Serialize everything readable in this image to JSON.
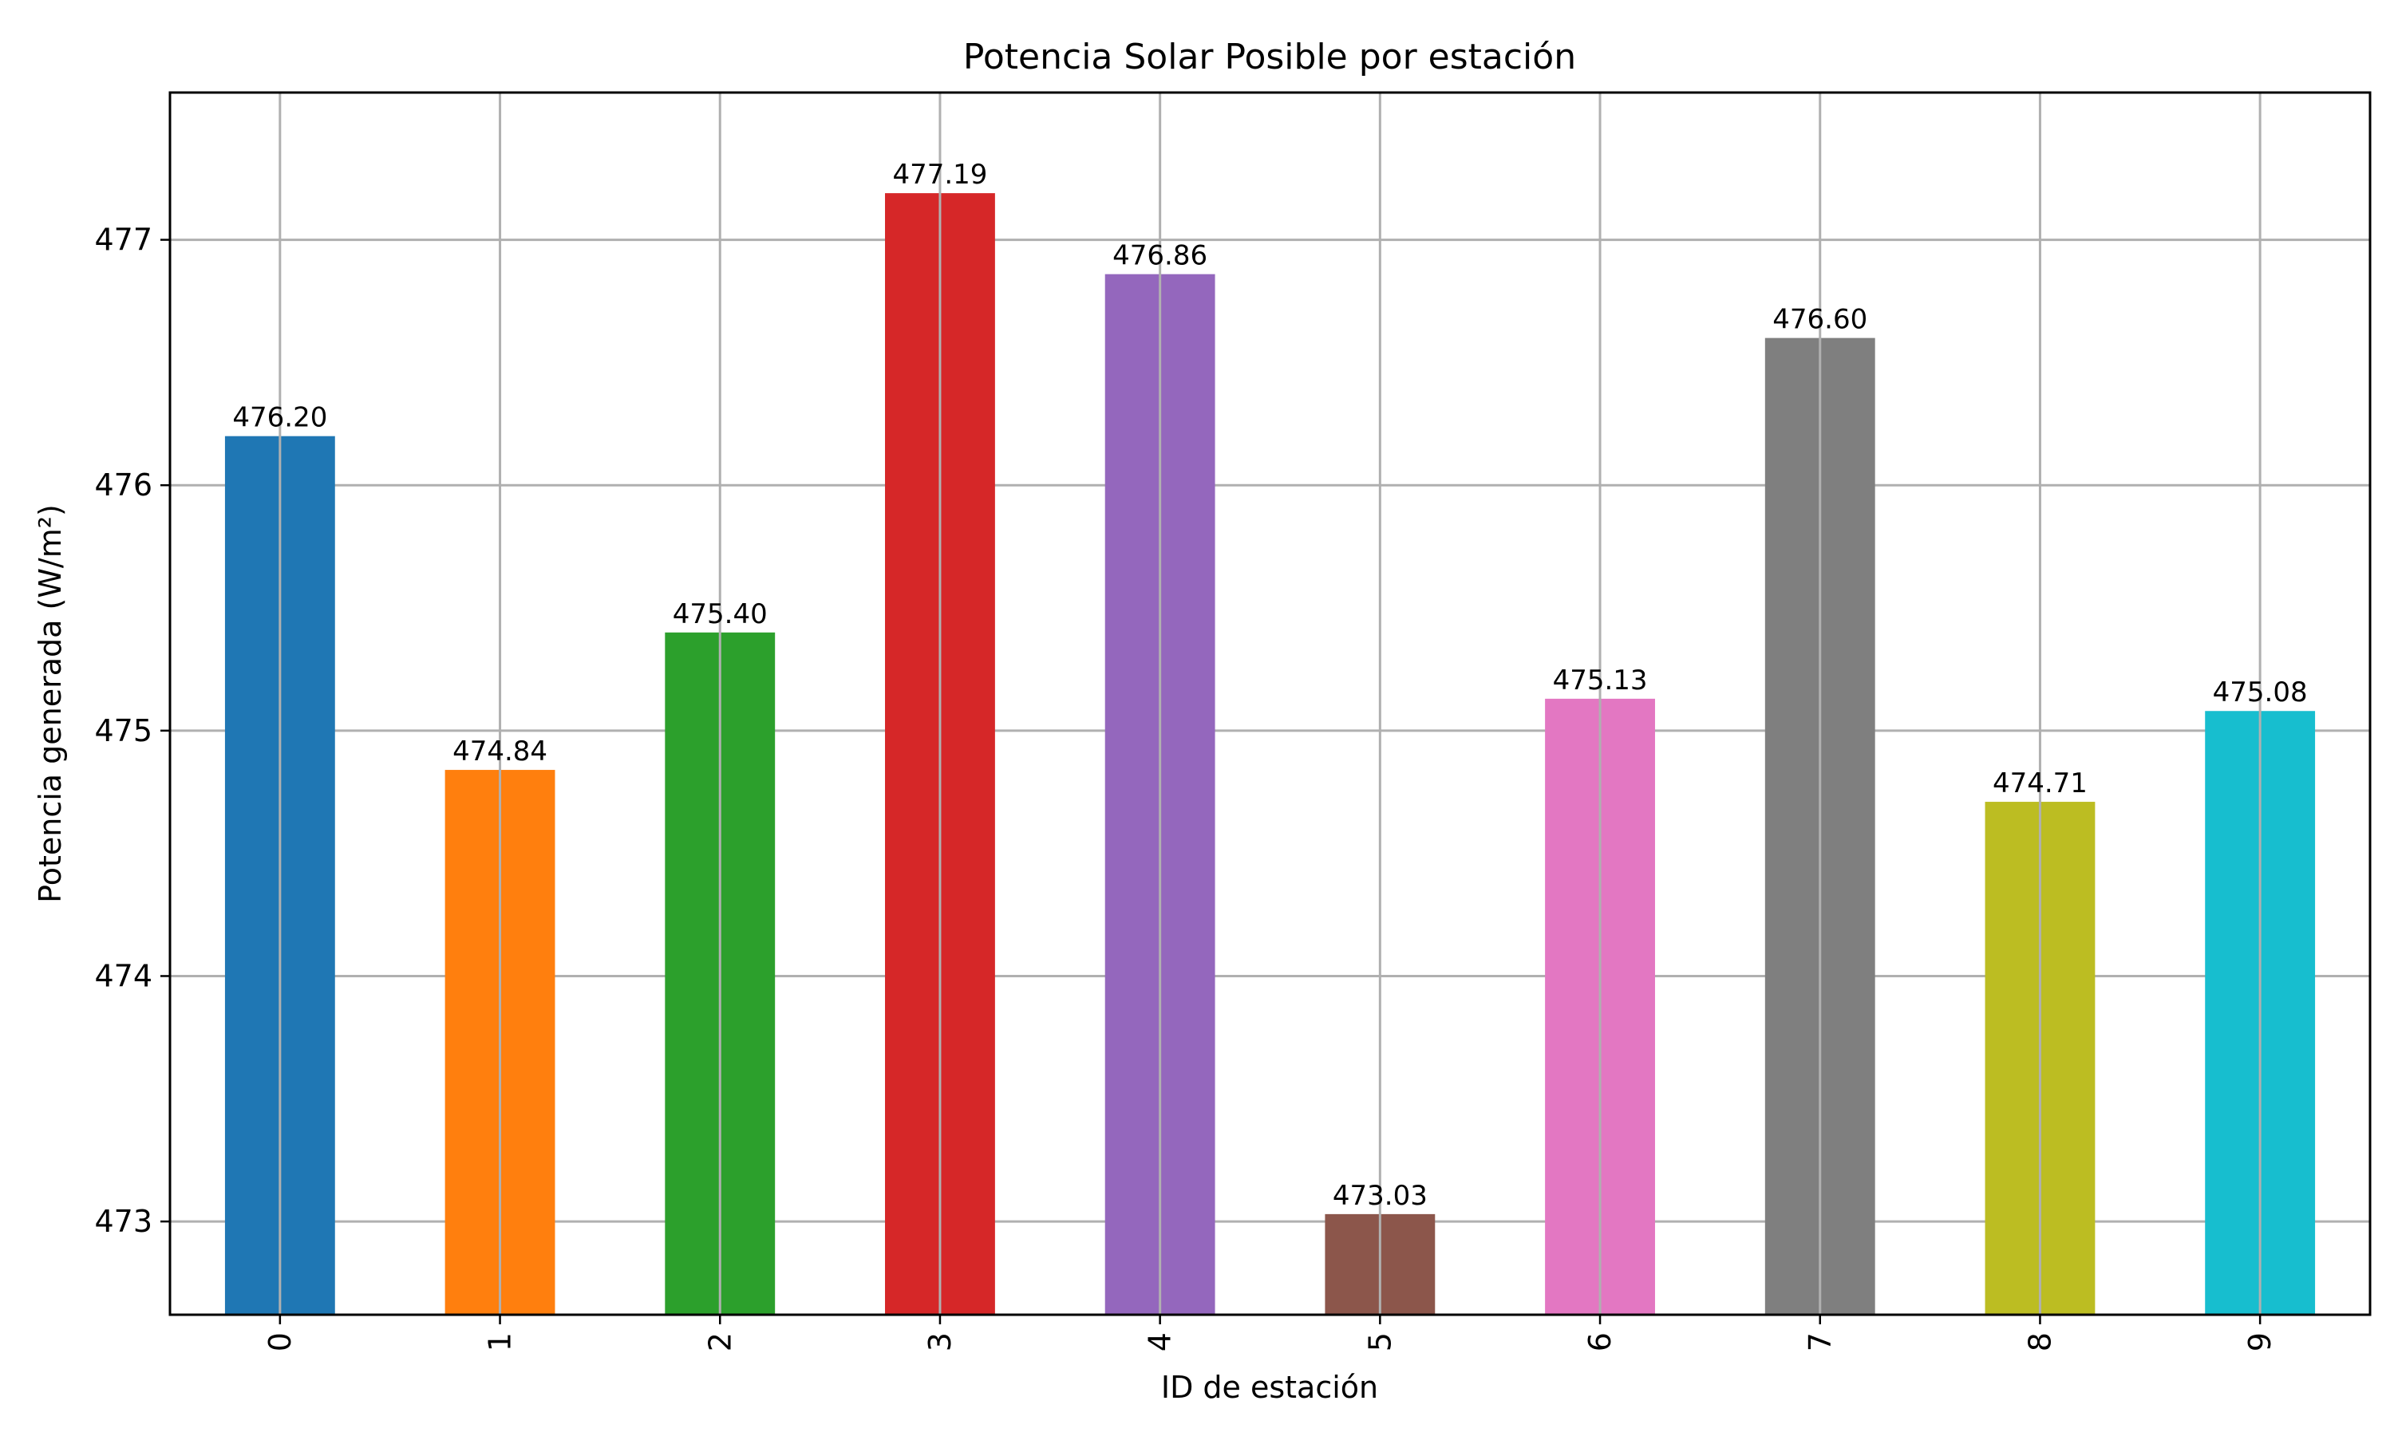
{
  "chart_data": {
    "type": "bar",
    "title": "Potencia Solar Posible por estación",
    "xlabel": "ID de estación",
    "ylabel": "Potencia generada (W/m²)",
    "categories": [
      "0",
      "1",
      "2",
      "3",
      "4",
      "5",
      "6",
      "7",
      "8",
      "9"
    ],
    "values": [
      476.2,
      474.84,
      475.4,
      477.19,
      476.86,
      473.03,
      475.13,
      476.6,
      474.71,
      475.08
    ],
    "value_labels": [
      "476.20",
      "474.84",
      "475.40",
      "477.19",
      "476.86",
      "473.03",
      "475.13",
      "476.60",
      "474.71",
      "475.08"
    ],
    "colors": [
      "#1f77b4",
      "#ff7f0e",
      "#2ca02c",
      "#d62728",
      "#9467bd",
      "#8c564b",
      "#e377c2",
      "#7f7f7f",
      "#bcbd22",
      "#17becf"
    ],
    "ylim": [
      472.62,
      477.6
    ],
    "yticks": [
      473,
      474,
      475,
      476,
      477
    ],
    "ytick_labels": [
      "473",
      "474",
      "475",
      "476",
      "477"
    ],
    "grid": true,
    "legend": "none"
  }
}
